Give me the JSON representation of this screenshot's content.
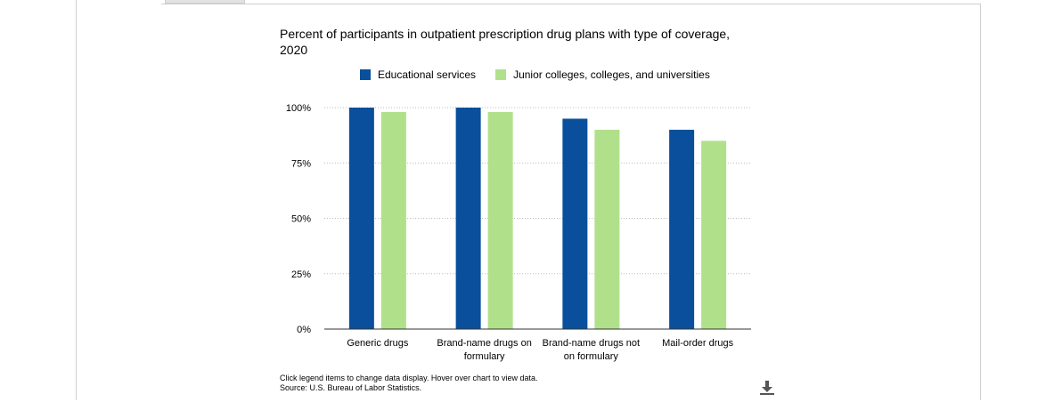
{
  "chart_data": {
    "type": "bar",
    "title": "Percent of participants in outpatient prescription drug plans with type of coverage, 2020",
    "categories": [
      [
        "Generic drugs"
      ],
      [
        "Brand-name drugs on",
        "formulary"
      ],
      [
        "Brand-name drugs not",
        "on formulary"
      ],
      [
        "Mail-order drugs"
      ]
    ],
    "series": [
      {
        "name": "Educational services",
        "color": "#0a4f9c",
        "values": [
          100,
          100,
          95,
          90
        ]
      },
      {
        "name": "Junior colleges, colleges, and universities",
        "color": "#b1e08b",
        "values": [
          98,
          98,
          90,
          85
        ]
      }
    ],
    "ylim": [
      0,
      100
    ],
    "yticks": [
      "0%",
      "25%",
      "50%",
      "75%",
      "100%"
    ],
    "ytick_values": [
      0,
      25,
      50,
      75,
      100
    ],
    "grid": true,
    "legend_position": "top"
  },
  "footnote": {
    "line1": "Click legend items to change data display. Hover over chart to view data.",
    "line2": "Source: U.S. Bureau of Labor Statistics."
  },
  "icons": {
    "download": "download-icon"
  }
}
